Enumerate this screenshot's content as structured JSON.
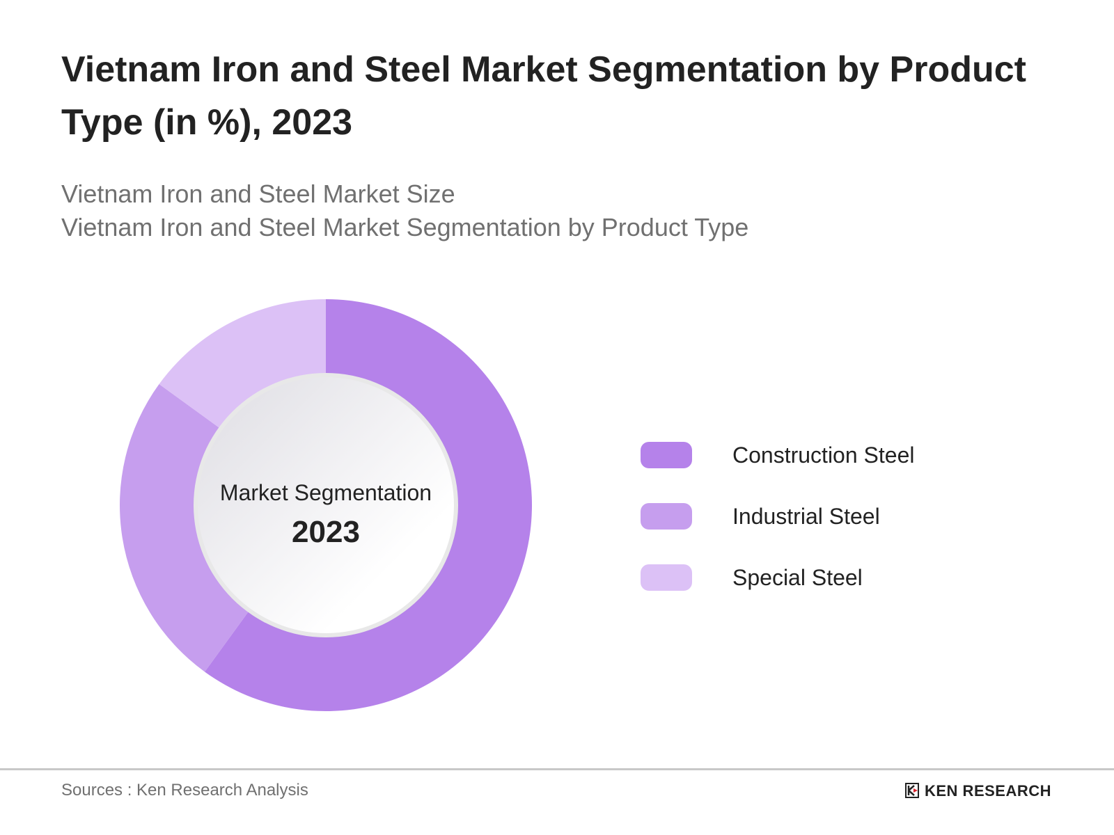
{
  "header": {
    "title": "Vietnam Iron and Steel Market Segmentation by Product Type (in %), 2023",
    "subtitle_lines": [
      "Vietnam Iron and Steel Market Size",
      "Vietnam Iron and Steel Market Segmentation by Product Type"
    ]
  },
  "chart_data": {
    "type": "pie",
    "variant": "donut",
    "title": "Vietnam Iron and Steel Market Segmentation by Product Type (in %), 2023",
    "center_label": "Market Segmentation",
    "center_value": "2023",
    "categories": [
      "Construction Steel",
      "Industrial Steel",
      "Special Steel"
    ],
    "values": [
      60,
      25,
      15
    ],
    "colors": [
      "#b582ea",
      "#c69eee",
      "#dcc1f6"
    ],
    "legend_placement": "right",
    "start_angle": "top, clockwise"
  },
  "footer": {
    "source": "Sources : Ken Research Analysis",
    "logo": "KEN RESEARCH"
  }
}
